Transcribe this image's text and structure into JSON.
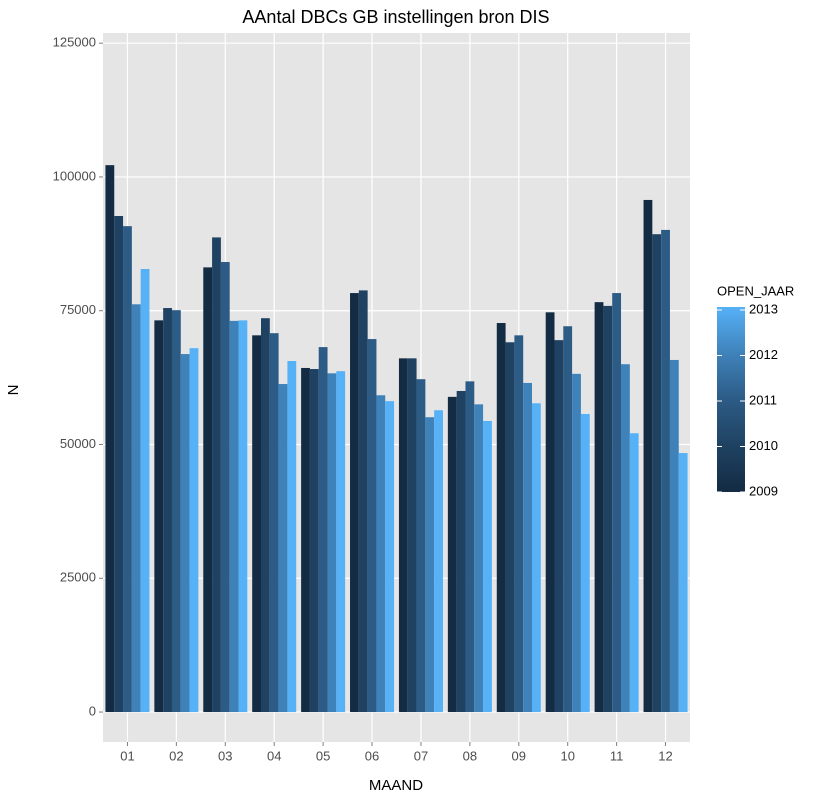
{
  "chart_data": {
    "type": "bar",
    "title": "AAntal DBCs GB instellingen bron DIS",
    "x_label": "MAAND",
    "y_label": "N",
    "legend_title": "OPEN_JAAR",
    "categories": [
      "01",
      "02",
      "03",
      "04",
      "05",
      "06",
      "07",
      "08",
      "09",
      "10",
      "11",
      "12"
    ],
    "series": [
      {
        "name": "2009",
        "color": "#132B43",
        "values": [
          102200,
          73200,
          83100,
          70400,
          64300,
          78300,
          66100,
          58900,
          72700,
          74700,
          76600,
          95700
        ]
      },
      {
        "name": "2010",
        "color": "#1F4262",
        "values": [
          92700,
          75500,
          88700,
          73600,
          64100,
          78800,
          66100,
          60000,
          69100,
          69500,
          75900,
          89300
        ]
      },
      {
        "name": "2011",
        "color": "#2C5B85",
        "values": [
          90800,
          75100,
          84100,
          70800,
          68200,
          69700,
          62200,
          61800,
          70400,
          72100,
          78300,
          90100
        ]
      },
      {
        "name": "2012",
        "color": "#3F82BA",
        "values": [
          76200,
          66900,
          73100,
          61300,
          63300,
          59200,
          55100,
          57500,
          61500,
          63200,
          65000,
          65800
        ]
      },
      {
        "name": "2013",
        "color": "#56B1F7",
        "values": [
          82800,
          68000,
          73200,
          65600,
          63700,
          58100,
          56400,
          54400,
          57700,
          55700,
          52100,
          48400
        ]
      }
    ],
    "ylim": [
      -5600,
      126900
    ],
    "yticks": [
      0,
      25000,
      50000,
      75000,
      100000,
      125000
    ],
    "grid": true
  }
}
